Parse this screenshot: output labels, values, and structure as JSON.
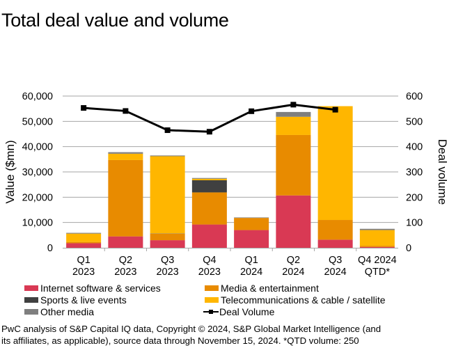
{
  "title": "Total deal value and volume",
  "chart_data": {
    "type": "bar",
    "stacked": true,
    "title": "Total deal value and volume",
    "categories": [
      "Q1\n2023",
      "Q2\n2023",
      "Q3\n2023",
      "Q4\n2023",
      "Q1\n2024",
      "Q2\n2024",
      "Q3\n2024",
      "Q4 2024\nQTD*"
    ],
    "ylabel": "Value ($mn)",
    "y2label": "Deal volume",
    "ylim": [
      0,
      60000
    ],
    "y2lim": [
      0,
      600
    ],
    "yticks": [
      "0",
      "10,000",
      "20,000",
      "30,000",
      "40,000",
      "50,000",
      "60,000"
    ],
    "y2ticks": [
      "0",
      "100",
      "200",
      "300",
      "400",
      "500",
      "600"
    ],
    "grid": true,
    "legend_position": "bottom",
    "series": [
      {
        "name": "Internet software & services",
        "color": "#d93954",
        "values": [
          1800,
          4500,
          3000,
          9200,
          7000,
          20700,
          3200,
          300
        ]
      },
      {
        "name": "Media & entertainment",
        "color": "#e88b00",
        "values": [
          500,
          30200,
          2600,
          12700,
          4800,
          23900,
          7800,
          500
        ]
      },
      {
        "name": "Sports & live events",
        "color": "#404040",
        "values": [
          0,
          0,
          100,
          4800,
          0,
          0,
          0,
          0
        ]
      },
      {
        "name": "Telecommunications & cable / satellite",
        "color": "#ffb600",
        "values": [
          3300,
          2500,
          30500,
          600,
          0,
          7200,
          45000,
          6200
        ]
      },
      {
        "name": "Other media",
        "color": "#7f7f7f",
        "values": [
          300,
          600,
          300,
          300,
          200,
          1900,
          0,
          500
        ]
      }
    ],
    "line": {
      "name": "Deal Volume",
      "color": "#000000",
      "axis": "right",
      "values": [
        553,
        541,
        465,
        459,
        540,
        566,
        546,
        null
      ]
    }
  },
  "footnote_lines": [
    "PwC analysis of S&P Capital IQ data, Copyright © 2024, S&P Global Market Intelligence (and",
    "its affiliates, as applicable), source data through November 15, 2024. *QTD volume: 250"
  ]
}
